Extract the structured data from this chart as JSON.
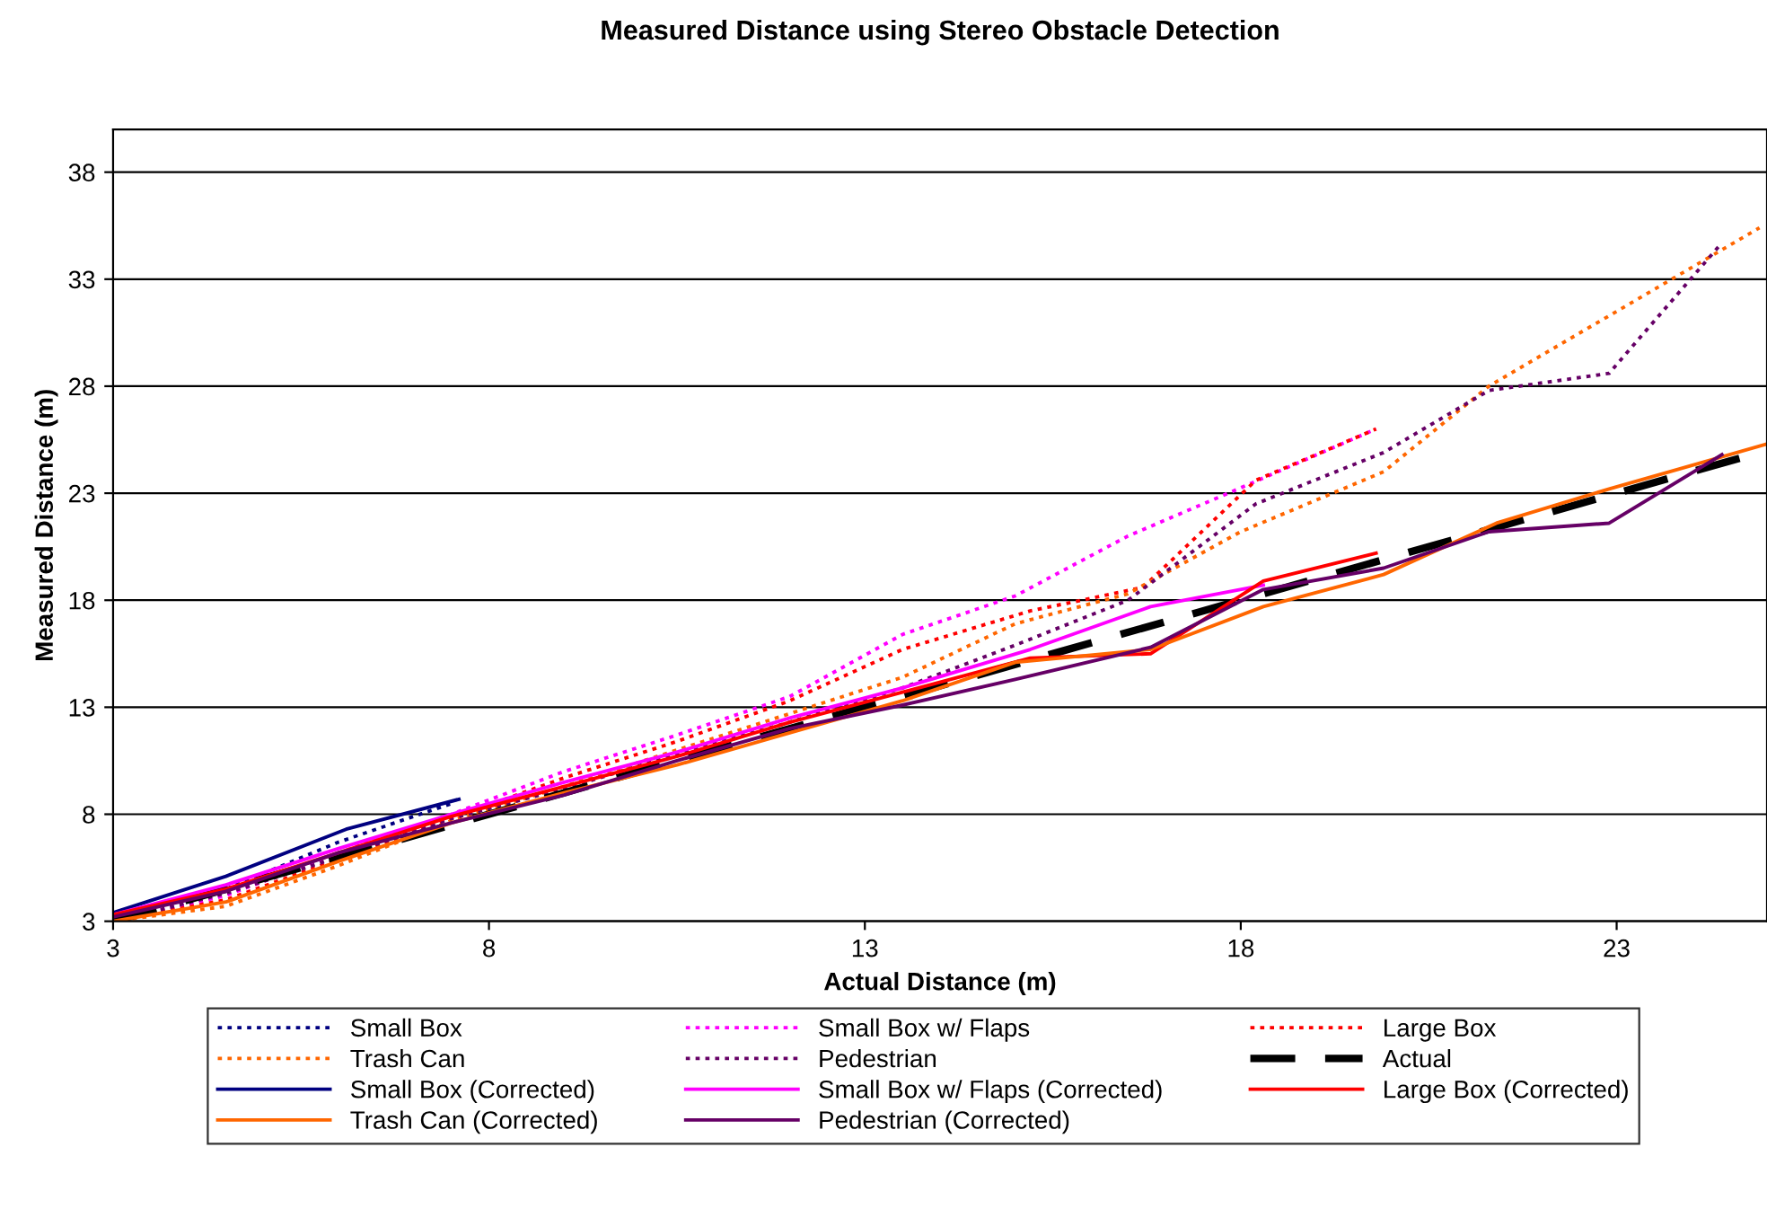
{
  "chart_data": {
    "type": "line",
    "title": "Measured Distance using Stereo Obstacle Detection",
    "xlabel": "Actual Distance (m)",
    "ylabel": "Measured Distance (m)",
    "xlim": [
      3,
      25
    ],
    "xticks": [
      3,
      8,
      13,
      18,
      23
    ],
    "ylim": [
      3,
      40
    ],
    "yticks": [
      3,
      8,
      13,
      18,
      23,
      28,
      33,
      38
    ],
    "grid": "y",
    "legend": "bottom",
    "marker": "none",
    "series": [
      {
        "name": "Small Box",
        "color": "#000080",
        "line_style": "dotted",
        "x": [
          3,
          4.5,
          6,
          7.5
        ],
        "values": [
          3.2,
          4.5,
          6.7,
          8.5
        ]
      },
      {
        "name": "Small Box w/ Flaps",
        "color": "#ff00ff",
        "line_style": "dotted",
        "x": [
          3,
          4.5,
          6,
          7.5,
          9,
          10.5,
          12,
          13.5,
          15,
          16.5,
          17.9,
          19.8
        ],
        "values": [
          3.0,
          4.2,
          6.2,
          8.0,
          10.0,
          11.7,
          13.5,
          16.4,
          18.2,
          21.0,
          23.1,
          26.0
        ]
      },
      {
        "name": "Large Box",
        "color": "#ff0000",
        "line_style": "dotted",
        "x": [
          3,
          4.5,
          6,
          7.5,
          9,
          10.5,
          12,
          13.5,
          15.2,
          16.7,
          18.2,
          19.8
        ],
        "values": [
          3.0,
          4.0,
          5.9,
          7.8,
          9.7,
          11.4,
          13.3,
          15.7,
          17.5,
          18.6,
          23.6,
          26.0
        ]
      },
      {
        "name": "Trash Can",
        "color": "#ff6600",
        "line_style": "dotted",
        "x": [
          3,
          4.5,
          6,
          7.5,
          9,
          10.5,
          12,
          13.5,
          15,
          16.5,
          18,
          19.9,
          21.3,
          24.9
        ],
        "values": [
          3.0,
          3.7,
          5.6,
          7.7,
          9.3,
          11.0,
          12.7,
          14.4,
          16.9,
          18.3,
          21.2,
          24.0,
          28.0,
          35.4
        ]
      },
      {
        "name": "Pedestrian",
        "color": "#660066",
        "line_style": "dotted",
        "x": [
          3,
          4.5,
          6,
          7.5,
          9,
          10.5,
          12,
          13.5,
          15,
          16.5,
          18.2,
          19.9,
          21.3,
          22.9,
          24.4
        ],
        "values": [
          3.0,
          4.3,
          6.0,
          7.8,
          9.2,
          10.8,
          12.3,
          13.9,
          15.9,
          18.0,
          22.5,
          24.9,
          27.8,
          28.6,
          34.7
        ]
      },
      {
        "name": "Actual",
        "color": "#000000",
        "line_style": "dashed",
        "x": [
          3,
          25
        ],
        "values": [
          3,
          25
        ]
      },
      {
        "name": "Small Box (Corrected)",
        "color": "#000080",
        "line_style": "solid",
        "x": [
          3,
          4.5,
          6.1,
          7.6
        ],
        "values": [
          3.4,
          5.1,
          7.3,
          8.7
        ]
      },
      {
        "name": "Small Box w/ Flaps (Corrected)",
        "color": "#ff00ff",
        "line_style": "solid",
        "x": [
          3,
          4.5,
          6,
          7.5,
          9,
          10.5,
          12,
          13.5,
          15.2,
          16.8,
          18.3
        ],
        "values": [
          3.3,
          4.7,
          6.4,
          8.0,
          9.5,
          10.9,
          12.5,
          13.9,
          15.7,
          17.7,
          18.7
        ]
      },
      {
        "name": "Large Box (Corrected)",
        "color": "#ff0000",
        "line_style": "solid",
        "x": [
          3,
          4.5,
          6,
          7.5,
          9,
          10.5,
          12,
          13.5,
          15.2,
          16.8,
          18.3,
          19.8
        ],
        "values": [
          3.3,
          4.5,
          6.2,
          7.9,
          9.3,
          10.7,
          12.3,
          13.7,
          15.3,
          15.5,
          18.9,
          20.2
        ]
      },
      {
        "name": "Trash Can (Corrected)",
        "color": "#ff6600",
        "line_style": "solid",
        "x": [
          3,
          4.5,
          6,
          7.5,
          9,
          10.5,
          12,
          13.5,
          15,
          16.8,
          18.3,
          19.9,
          21.4,
          22.9,
          25
        ],
        "values": [
          3.0,
          3.9,
          5.8,
          7.6,
          9.0,
          10.3,
          11.8,
          13.3,
          15.1,
          15.7,
          17.7,
          19.2,
          21.6,
          23.2,
          25.3
        ]
      },
      {
        "name": "Pedestrian (Corrected)",
        "color": "#660066",
        "line_style": "solid",
        "x": [
          3,
          4.5,
          6,
          7.5,
          9,
          10.5,
          12,
          13.5,
          15,
          16.8,
          18.3,
          19.9,
          21.3,
          22.9,
          24.4
        ],
        "values": [
          3.2,
          4.4,
          6.2,
          7.6,
          8.9,
          10.5,
          12.0,
          13.1,
          14.3,
          15.8,
          18.5,
          19.5,
          21.2,
          21.6,
          24.8
        ]
      }
    ]
  }
}
